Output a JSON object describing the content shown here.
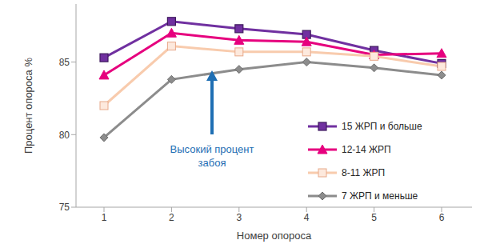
{
  "chart_data": {
    "type": "line",
    "x_label": "Номер опороса",
    "y_label": "Процент опороса %",
    "annotation": "Высокий процент забоя",
    "categories": [
      "1",
      "2",
      "3",
      "4",
      "5",
      "6"
    ],
    "ylim": [
      75,
      89
    ],
    "yticks": [
      75,
      80,
      85
    ],
    "grid": false,
    "legend": "right",
    "series": [
      {
        "name": "15 ЖРП и больше",
        "color": "#7030a0",
        "marker": "square",
        "values": [
          85.3,
          87.8,
          87.3,
          86.9,
          85.8,
          84.9
        ]
      },
      {
        "name": "12-14 ЖРП",
        "color": "#e6007e",
        "marker": "triangle",
        "values": [
          84.1,
          87.0,
          86.5,
          86.4,
          85.5,
          85.6
        ]
      },
      {
        "name": "8-11 ЖРП",
        "color": "#f8cbad",
        "marker": "square",
        "values": [
          82.0,
          86.1,
          85.7,
          85.7,
          85.4,
          84.7
        ]
      },
      {
        "name": "7 ЖРП и меньше",
        "color": "#8c8c8c",
        "marker": "diamond",
        "values": [
          79.8,
          83.8,
          84.5,
          85.0,
          84.6,
          84.1
        ]
      }
    ]
  }
}
